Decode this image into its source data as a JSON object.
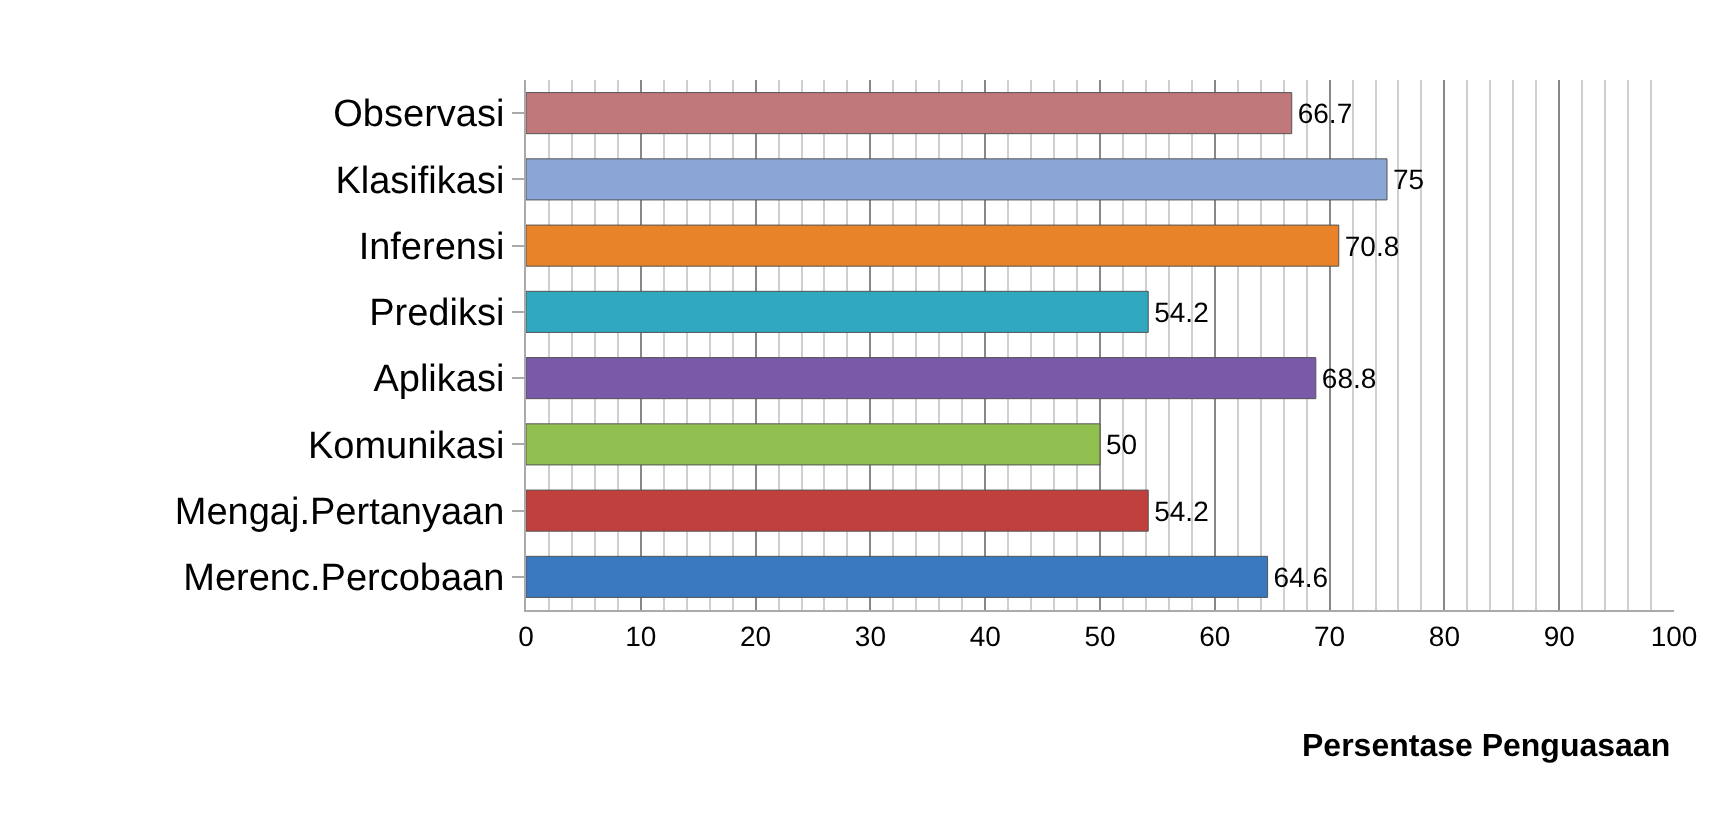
{
  "chart_data": {
    "type": "bar",
    "orientation": "horizontal",
    "xlabel": "Persentase Penguasaan",
    "categories": [
      "Observasi",
      "Klasifikasi",
      "Inferensi",
      "Prediksi",
      "Aplikasi",
      "Komunikasi",
      "Mengaj.Pertanyaan",
      "Merenc.Percobaan"
    ],
    "values": [
      66.7,
      75,
      70.8,
      54.2,
      68.8,
      50,
      54.2,
      64.6
    ],
    "colors": [
      "#c0787a",
      "#8aa6d6",
      "#e8832a",
      "#2fa8c0",
      "#7a5aa8",
      "#92c050",
      "#c0403e",
      "#3a78c0"
    ],
    "data_labels": true,
    "xlim": [
      0,
      100
    ],
    "xticks": [
      0,
      10,
      20,
      30,
      40,
      50,
      60,
      70,
      80,
      90,
      100
    ],
    "grid": "x"
  }
}
